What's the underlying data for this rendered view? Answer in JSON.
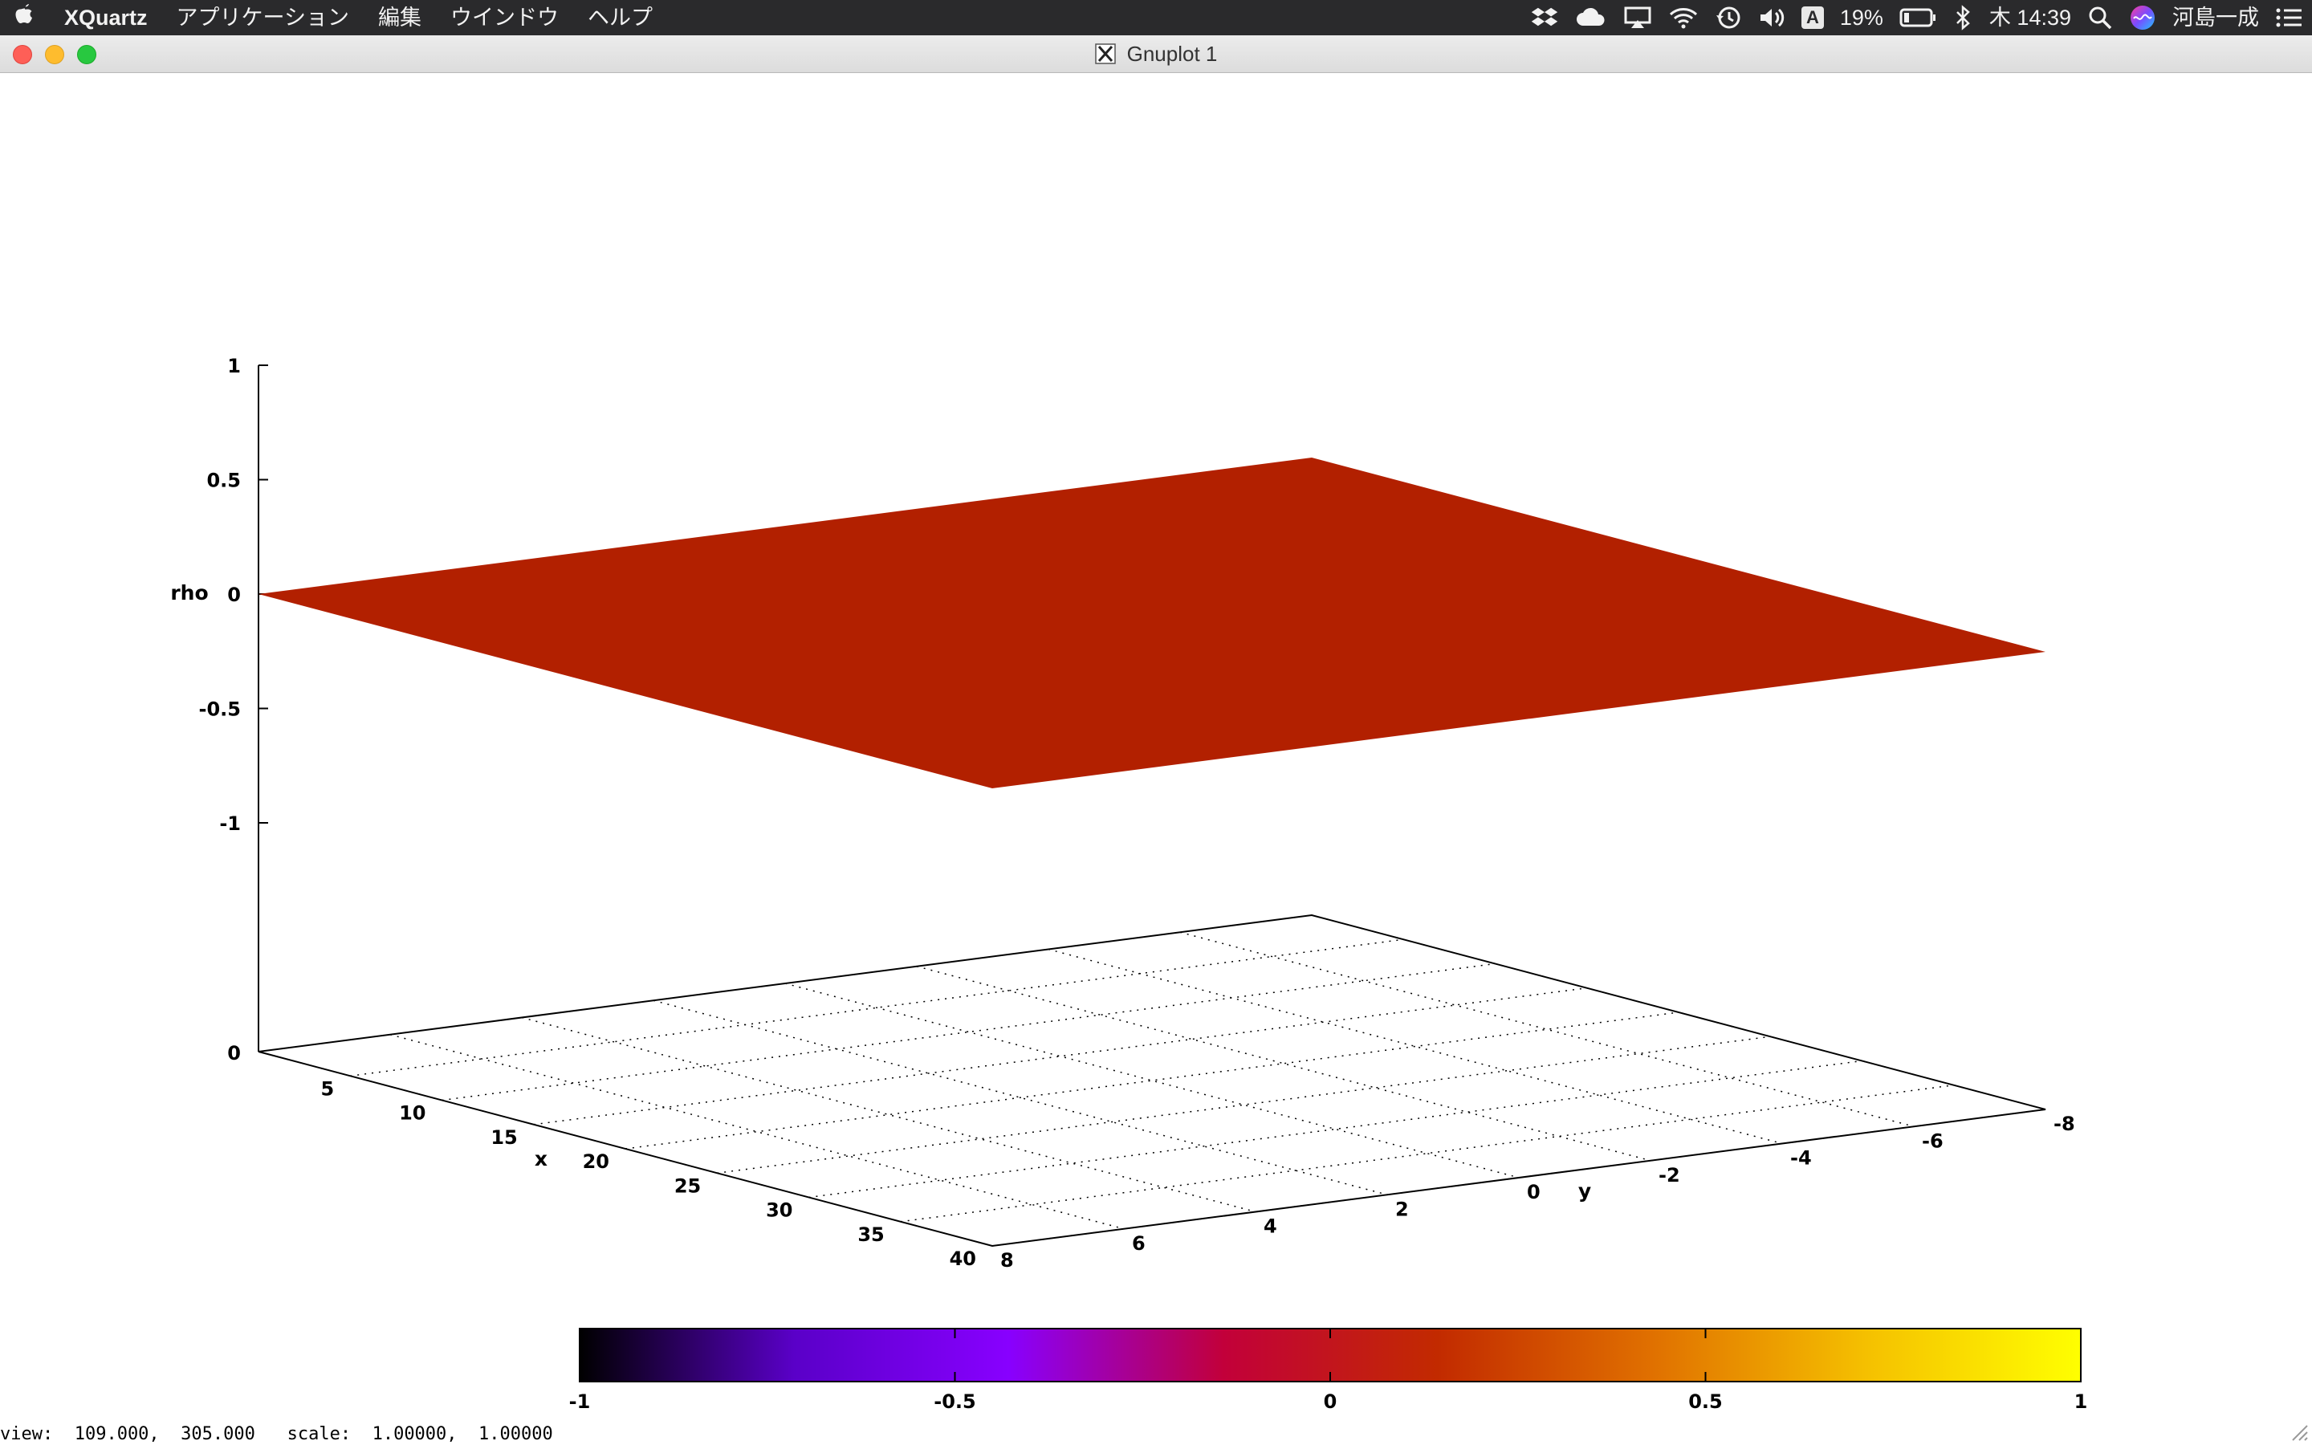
{
  "menubar": {
    "app_name": "XQuartz",
    "items": [
      "アプリケーション",
      "編集",
      "ウインドウ",
      "ヘルプ"
    ],
    "status": {
      "battery": "19%",
      "clock": "木 14:39",
      "input_badge": "A",
      "user": "河島一成"
    }
  },
  "window": {
    "title": "Gnuplot 1"
  },
  "chart_data": {
    "type": "surface3d",
    "zlabel": "rho",
    "xlabel": "x",
    "ylabel": "y",
    "z_ticks": [
      "1",
      "0.5",
      "0",
      "-0.5",
      "-1"
    ],
    "base_tick": "0",
    "x_ticks": [
      "5",
      "10",
      "15",
      "20",
      "25",
      "30",
      "35",
      "40"
    ],
    "y_ticks": [
      "8",
      "6",
      "4",
      "2",
      "0",
      "-2",
      "-4",
      "-6",
      "-8"
    ],
    "xlim": [
      0,
      40
    ],
    "ylim": [
      8,
      -8
    ],
    "zlim": [
      -1,
      1
    ],
    "surface_value": 0,
    "surface_color": "#b22000",
    "grid": true,
    "colorbox": {
      "range": [
        -1,
        1
      ],
      "ticks": [
        "-1",
        "-0.5",
        "0",
        "0.5",
        "1"
      ],
      "palette": [
        "#000000",
        "#5a00c8",
        "#8800ff",
        "#c2003a",
        "#c22a00",
        "#e07000",
        "#f5c000",
        "#ffff00"
      ]
    }
  },
  "status_line": "view:  109.000,  305.000   scale:  1.00000,  1.00000"
}
